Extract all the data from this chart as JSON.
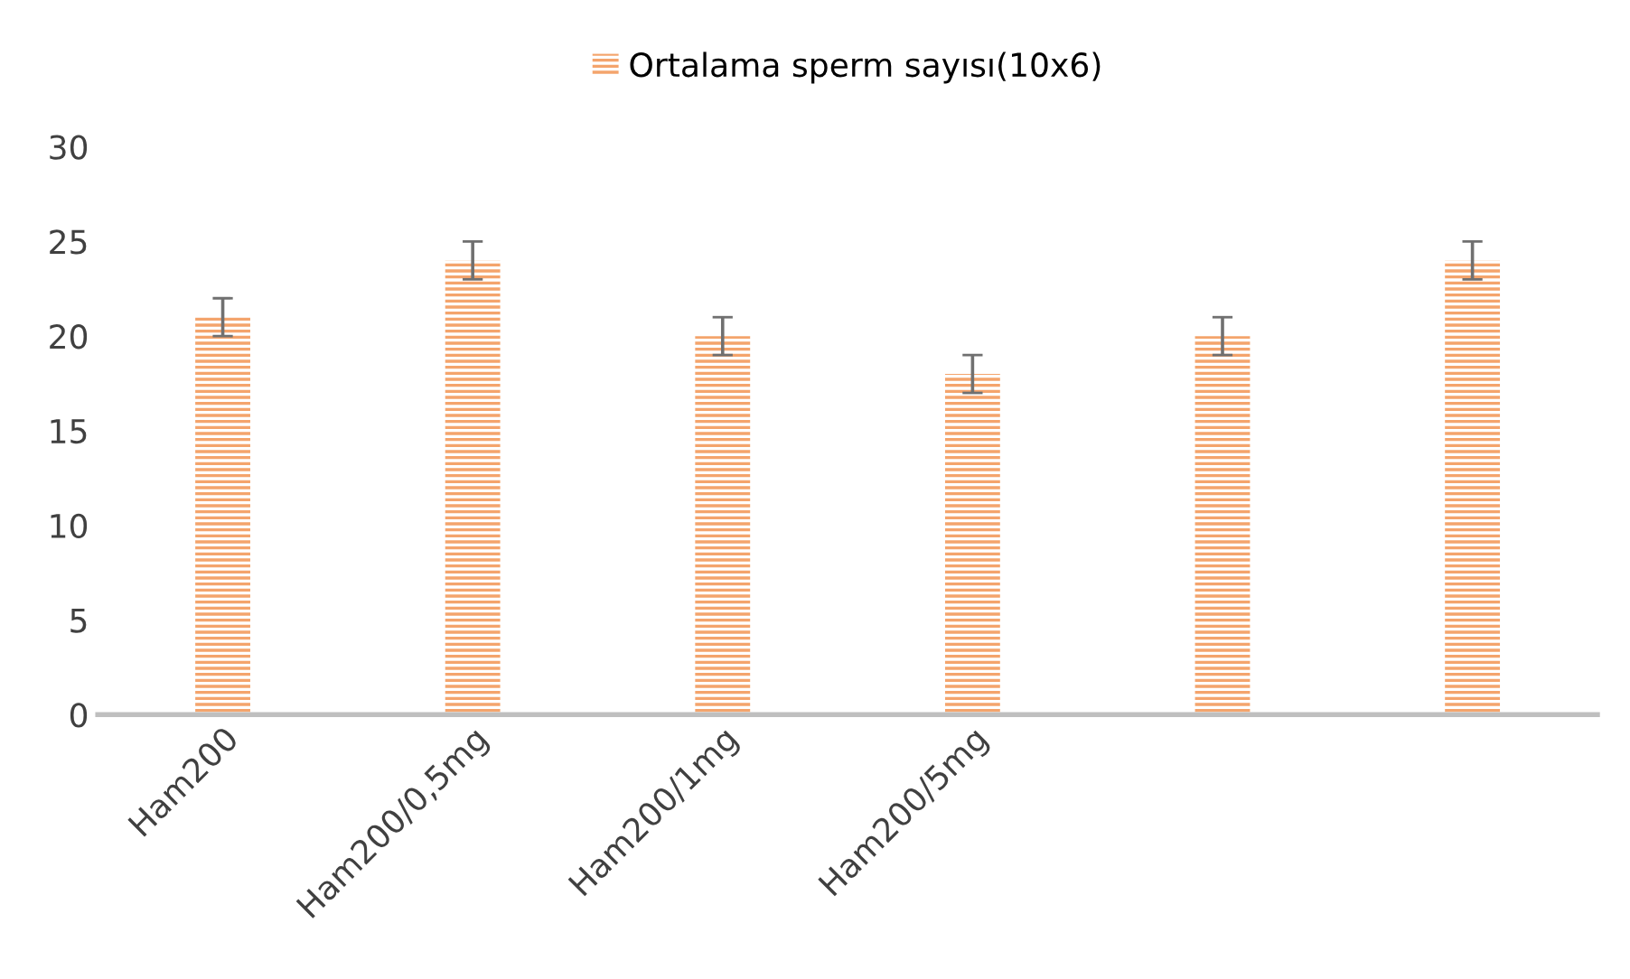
{
  "chart_data": {
    "type": "bar",
    "categories": [
      "Ham200",
      "Ham200/0,5mg",
      "Ham200/1mg",
      "Ham200/5mg",
      null,
      null
    ],
    "series": [
      {
        "name": "Ortalama sperm sayısı(10x6)",
        "color": "#f4a46c",
        "values": [
          21,
          24,
          20,
          18,
          20,
          24
        ],
        "errors": [
          1,
          1,
          1,
          1,
          1,
          1
        ]
      }
    ],
    "ylim": [
      0,
      30
    ],
    "yticks": [
      0,
      5,
      10,
      15,
      20,
      25,
      30
    ],
    "grid": false,
    "legend": "top"
  }
}
